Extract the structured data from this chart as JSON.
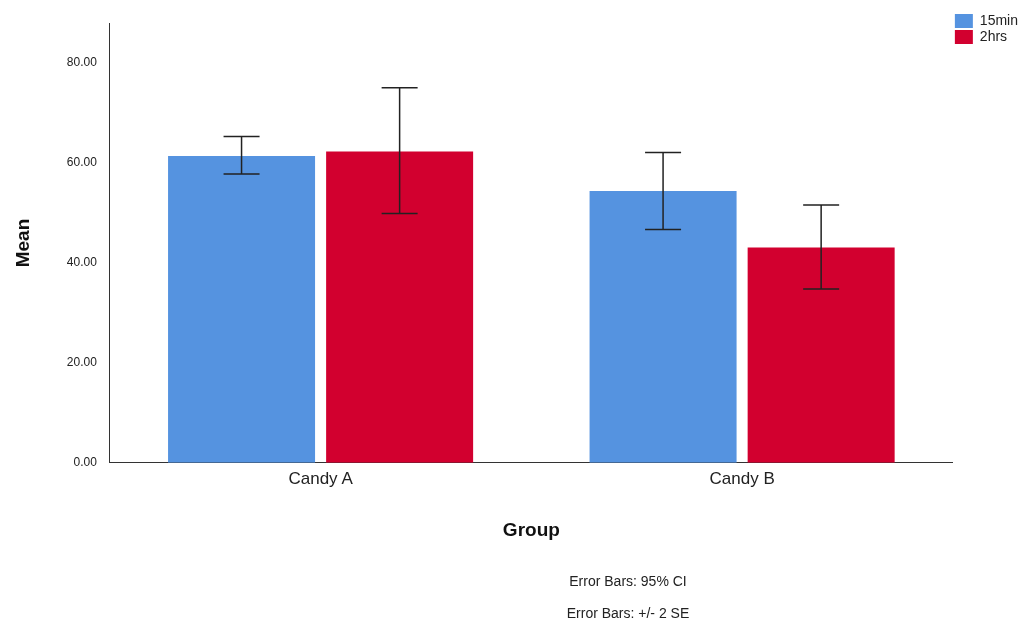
{
  "chart_data": {
    "type": "bar",
    "xlabel": "Group",
    "ylabel": "Mean",
    "categories": [
      "Candy A",
      "Candy B"
    ],
    "series": [
      {
        "name": "15min",
        "color": "#5593e0",
        "values": [
          61.4,
          54.4
        ],
        "errors": [
          [
            57.8,
            65.3
          ],
          [
            46.7,
            62.1
          ]
        ]
      },
      {
        "name": "2hrs",
        "color": "#d2002f",
        "values": [
          62.3,
          43.1
        ],
        "errors": [
          [
            49.9,
            75.1
          ],
          [
            34.8,
            51.6
          ]
        ]
      }
    ],
    "ylim": [
      0,
      88
    ],
    "yticks": [
      {
        "value": 0,
        "label": "0.00"
      },
      {
        "value": 20,
        "label": "20.00"
      },
      {
        "value": 40,
        "label": "40.00"
      },
      {
        "value": 60,
        "label": "60.00"
      },
      {
        "value": 80,
        "label": "80.00"
      }
    ],
    "grid": false,
    "legend": "top right",
    "annotations": [
      "Error Bars: 95% CI",
      "Error Bars: +/- 2 SE"
    ]
  }
}
